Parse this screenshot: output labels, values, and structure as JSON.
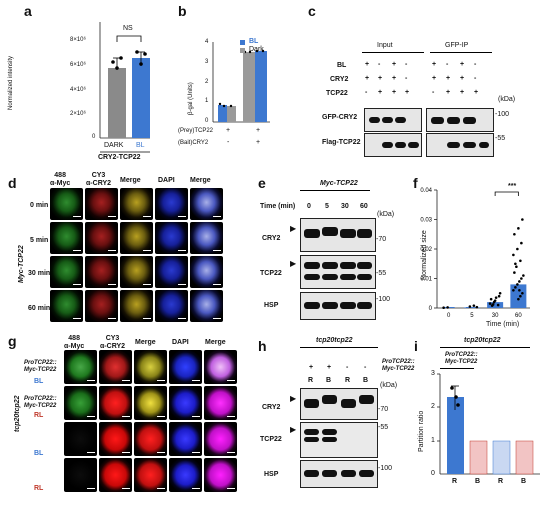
{
  "panels": {
    "a": "a",
    "b": "b",
    "c": "c",
    "d": "d",
    "e": "e",
    "f": "f",
    "g": "g",
    "h": "h",
    "i": "i"
  },
  "colors": {
    "dark_gray": "#8a8a8a",
    "bl_blue": "#3d78d0",
    "rl_pink": "#f2c4c4",
    "light_blue": "#c9d8f2",
    "accent_red": "#c0392b"
  },
  "panel_a": {
    "ylabel": "Normalized intensity",
    "y_ticks": [
      "8×10⁶",
      "6×10⁶",
      "4×10⁶",
      "2×10⁶",
      "0"
    ],
    "sig": "NS",
    "categories": [
      "DARK",
      "BL"
    ],
    "group_label": "CRY2-TCP22"
  },
  "panel_b": {
    "ylabel": "β-gal (Units)",
    "y_ticks": [
      "4",
      "3",
      "2",
      "1",
      "0"
    ],
    "legend": [
      "BL",
      "Dark"
    ],
    "row_labels": [
      "(Prey)TCP22",
      "(Bait)CRY2"
    ],
    "row1_marks": [
      "+",
      "+"
    ],
    "row2_marks": [
      "-",
      "+"
    ]
  },
  "panel_c": {
    "input_label": "Input",
    "ip_label": "GFP-IP",
    "row_labels": [
      "BL",
      "CRY2",
      "TCP22"
    ],
    "row_marks": [
      [
        "+",
        "-",
        "+",
        "-",
        "+",
        "-",
        "+",
        "-"
      ],
      [
        "+",
        "+",
        "+",
        "-",
        "+",
        "+",
        "+",
        "-"
      ],
      [
        "-",
        "+",
        "+",
        "+",
        "-",
        "+",
        "+",
        "+"
      ]
    ],
    "kda": "(kDa)",
    "blot1_label": "GFP-CRY2",
    "blot2_label": "Flag-TCP22",
    "marker1": "-100",
    "marker2": "-55"
  },
  "panel_d": {
    "col_headers": [
      "488\nα-Myc",
      "CY3\nα-CRY2",
      "Merge",
      "DAPI",
      "Merge"
    ],
    "times": [
      "0 min",
      "5 min",
      "30 min",
      "60 min"
    ],
    "side_label": "Myc-TCP22"
  },
  "panel_e": {
    "title": "Myc-TCP22",
    "time_label": "Time (min)",
    "times": [
      "0",
      "5",
      "30",
      "60"
    ],
    "kda": "(kDa)",
    "rows": [
      "CRY2",
      "TCP22",
      "HSP"
    ],
    "markers": [
      "-70",
      "-55",
      "-100"
    ]
  },
  "panel_f": {
    "ylabel": "Normalized size",
    "xlabel": "Time (min)",
    "sig": "***"
  },
  "chart_data": {
    "type": "bar",
    "categories": [
      "0",
      "5",
      "30",
      "60"
    ],
    "series": [
      {
        "values": [
          0.0,
          0.0002,
          0.002,
          0.008
        ]
      }
    ],
    "y_ticks": [
      0,
      0.01,
      0.02,
      0.03,
      0.04
    ],
    "ylim": [
      0,
      0.04
    ],
    "xlabel": "Time (min)",
    "ylabel": "Normalized size",
    "annotation": "***"
  },
  "panel_g": {
    "col_headers": [
      "488\nα-Myc",
      "CY3\nα-CRY2",
      "Merge",
      "DAPI",
      "Merge"
    ],
    "rows": [
      {
        "genotype": "ProTCP22::\nMyc-TCP22",
        "light": "BL"
      },
      {
        "genotype": "ProTCP22::\nMyc-TCP22",
        "light": "RL"
      },
      {
        "genotype": "",
        "light": "BL"
      },
      {
        "genotype": "",
        "light": "RL"
      }
    ],
    "side_label": "tcp20tcp22"
  },
  "panel_h": {
    "title": "tcp20tcp22",
    "construct": "ProTCP22::\nMyc-TCP22",
    "marks": [
      "+",
      "+",
      "-",
      "-"
    ],
    "lanes": [
      "R",
      "B",
      "R",
      "B"
    ],
    "kda": "(kDa)",
    "rows": [
      "CRY2",
      "TCP22",
      "HSP"
    ],
    "markers": [
      "-70",
      "-55",
      "-100"
    ]
  },
  "panel_i": {
    "title": "tcp20tcp22",
    "construct": "ProTCP22::\nMyc-TCP22",
    "ylabel": "Partition ratio",
    "y_ticks": [
      "3",
      "2",
      "1",
      "0"
    ],
    "categories": [
      "R",
      "B",
      "R",
      "B"
    ],
    "values": [
      2.3,
      1,
      1,
      1
    ]
  }
}
